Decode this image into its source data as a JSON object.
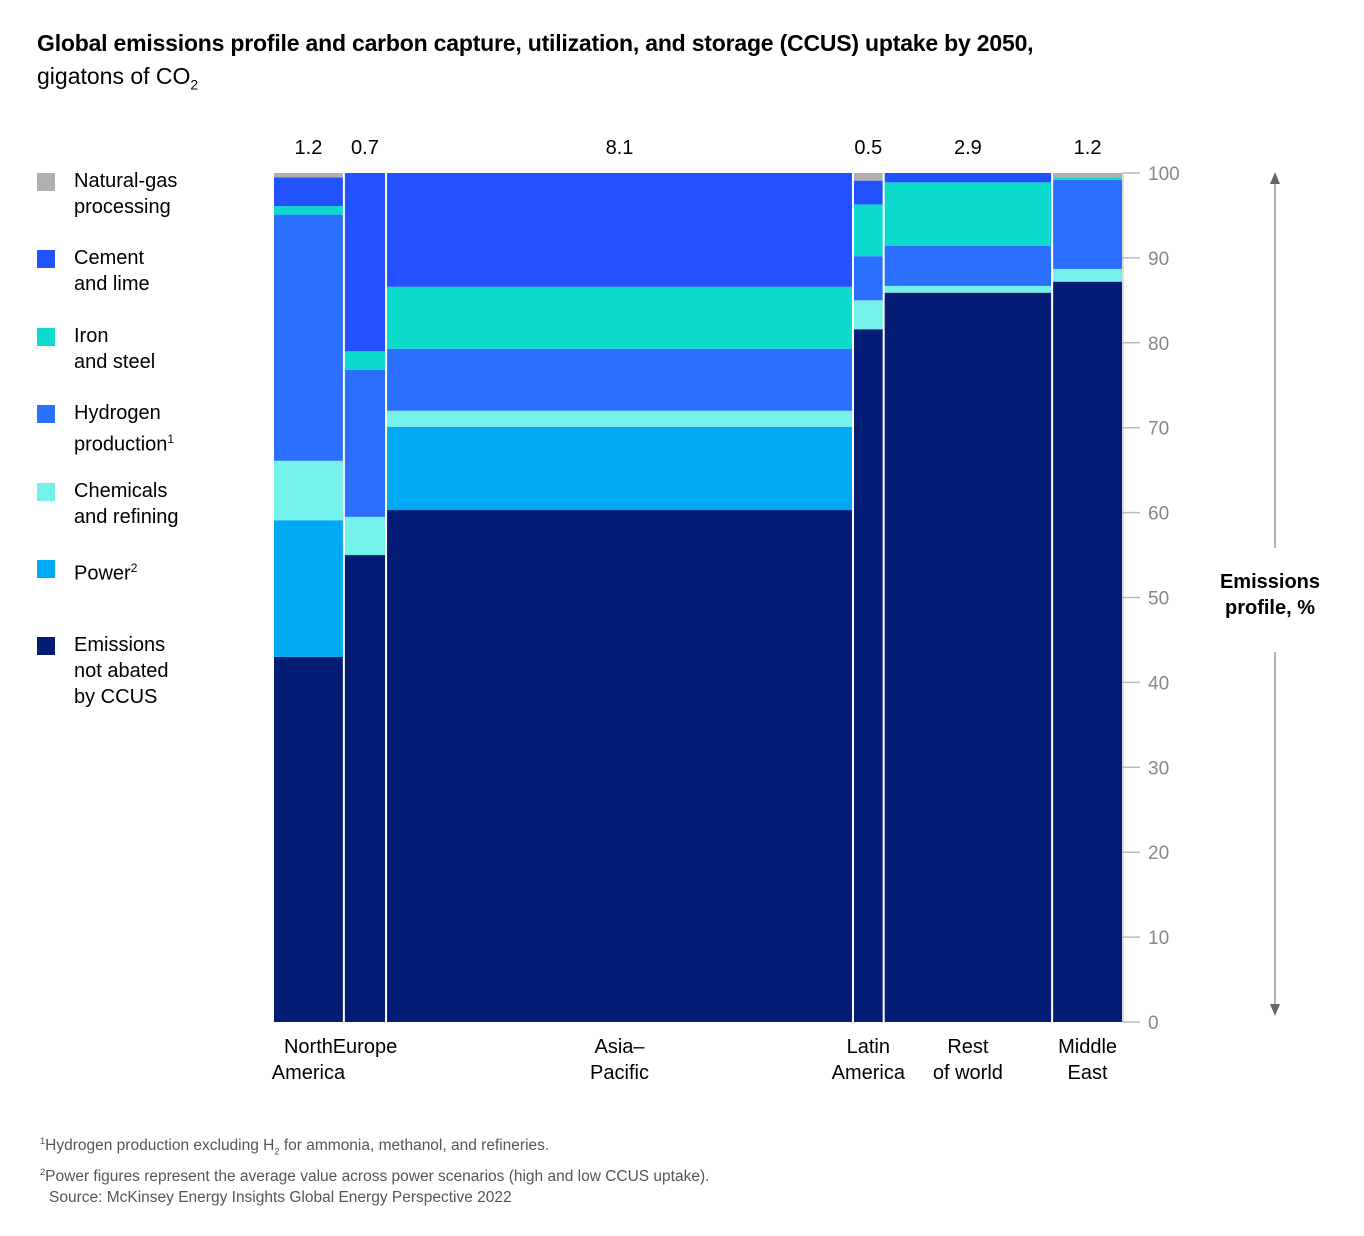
{
  "chart_data": {
    "type": "bar",
    "subtype": "marimekko",
    "title": "Global emissions profile and carbon capture, utilization, and storage (CCUS) uptake by 2050,",
    "subtitle_pre": "gigatons of CO",
    "subtitle_sub": "2",
    "ylabel_line1": "Emissions",
    "ylabel_line2": "profile, %",
    "ylim": [
      0,
      100
    ],
    "yticks": [
      0,
      10,
      20,
      30,
      40,
      50,
      60,
      70,
      80,
      90,
      100
    ],
    "categories": [
      {
        "line1": "North",
        "line2": "America",
        "width": 1.2,
        "width_label": "1.2"
      },
      {
        "line1": "Europe",
        "line2": "",
        "width": 0.7,
        "width_label": "0.7"
      },
      {
        "line1": "Asia–",
        "line2": "Pacific",
        "width": 8.1,
        "width_label": "8.1"
      },
      {
        "line1": "Latin",
        "line2": "America",
        "width": 0.5,
        "width_label": "0.5"
      },
      {
        "line1": "Rest",
        "line2": "of world",
        "width": 2.9,
        "width_label": "2.9"
      },
      {
        "line1": "Middle",
        "line2": "East",
        "width": 1.2,
        "width_label": "1.2"
      }
    ],
    "series": [
      {
        "name": "Emissions not abated by CCUS",
        "color": "#051c76",
        "values": [
          43.0,
          55.0,
          60.3,
          81.6,
          85.9,
          87.2
        ]
      },
      {
        "name": "Power",
        "color": "#00a9f4",
        "values": [
          16.1,
          0,
          9.8,
          0,
          0,
          0
        ]
      },
      {
        "name": "Chemicals and refining",
        "color": "#74f1e8",
        "values": [
          7.0,
          4.5,
          1.9,
          3.4,
          0.8,
          1.5
        ]
      },
      {
        "name": "Hydrogen production",
        "color": "#2a6ffd",
        "values": [
          29.0,
          17.3,
          7.3,
          5.2,
          4.7,
          10.5
        ]
      },
      {
        "name": "Iron and steel",
        "color": "#0cdacd",
        "values": [
          1.0,
          2.2,
          7.3,
          6.1,
          7.5,
          0.3
        ]
      },
      {
        "name": "Cement and lime",
        "color": "#2251ff",
        "values": [
          3.4,
          21.0,
          13.4,
          2.8,
          1.1,
          0.0
        ]
      },
      {
        "name": "Natural-gas processing",
        "color": "#b0b0b0",
        "values": [
          0.5,
          0,
          0,
          0.9,
          0,
          0.5
        ]
      }
    ]
  },
  "legend": [
    {
      "line1": "Natural-gas",
      "line2": "processing",
      "line3": "",
      "sup": "",
      "color": "#b0b0b0"
    },
    {
      "line1": "Cement",
      "line2": "and lime",
      "line3": "",
      "sup": "",
      "color": "#2251ff"
    },
    {
      "line1": "Iron",
      "line2": "and steel",
      "line3": "",
      "sup": "",
      "color": "#0cdacd"
    },
    {
      "line1": "Hydrogen",
      "line2": "production",
      "line3": "",
      "sup": "1",
      "color": "#2a6ffd"
    },
    {
      "line1": "Chemicals",
      "line2": "and refining",
      "line3": "",
      "sup": "",
      "color": "#74f1e8"
    },
    {
      "line1": "Power",
      "line2": "",
      "line3": "",
      "sup": "2",
      "color": "#00a9f4"
    },
    {
      "line1": "Emissions",
      "line2": "not abated",
      "line3": "by CCUS",
      "sup": "",
      "color": "#051c76"
    }
  ],
  "footnotes": {
    "f1_sup": "1",
    "f1_pre": "Hydrogen production excluding H",
    "f1_sub": "2",
    "f1_post": " for ammonia, methanol, and refineries.",
    "f2_sup": "2",
    "f2_text": "Power figures represent the average value across power scenarios (high and low CCUS uptake).",
    "source": "Source: McKinsey Energy Insights Global Energy Perspective 2022"
  }
}
